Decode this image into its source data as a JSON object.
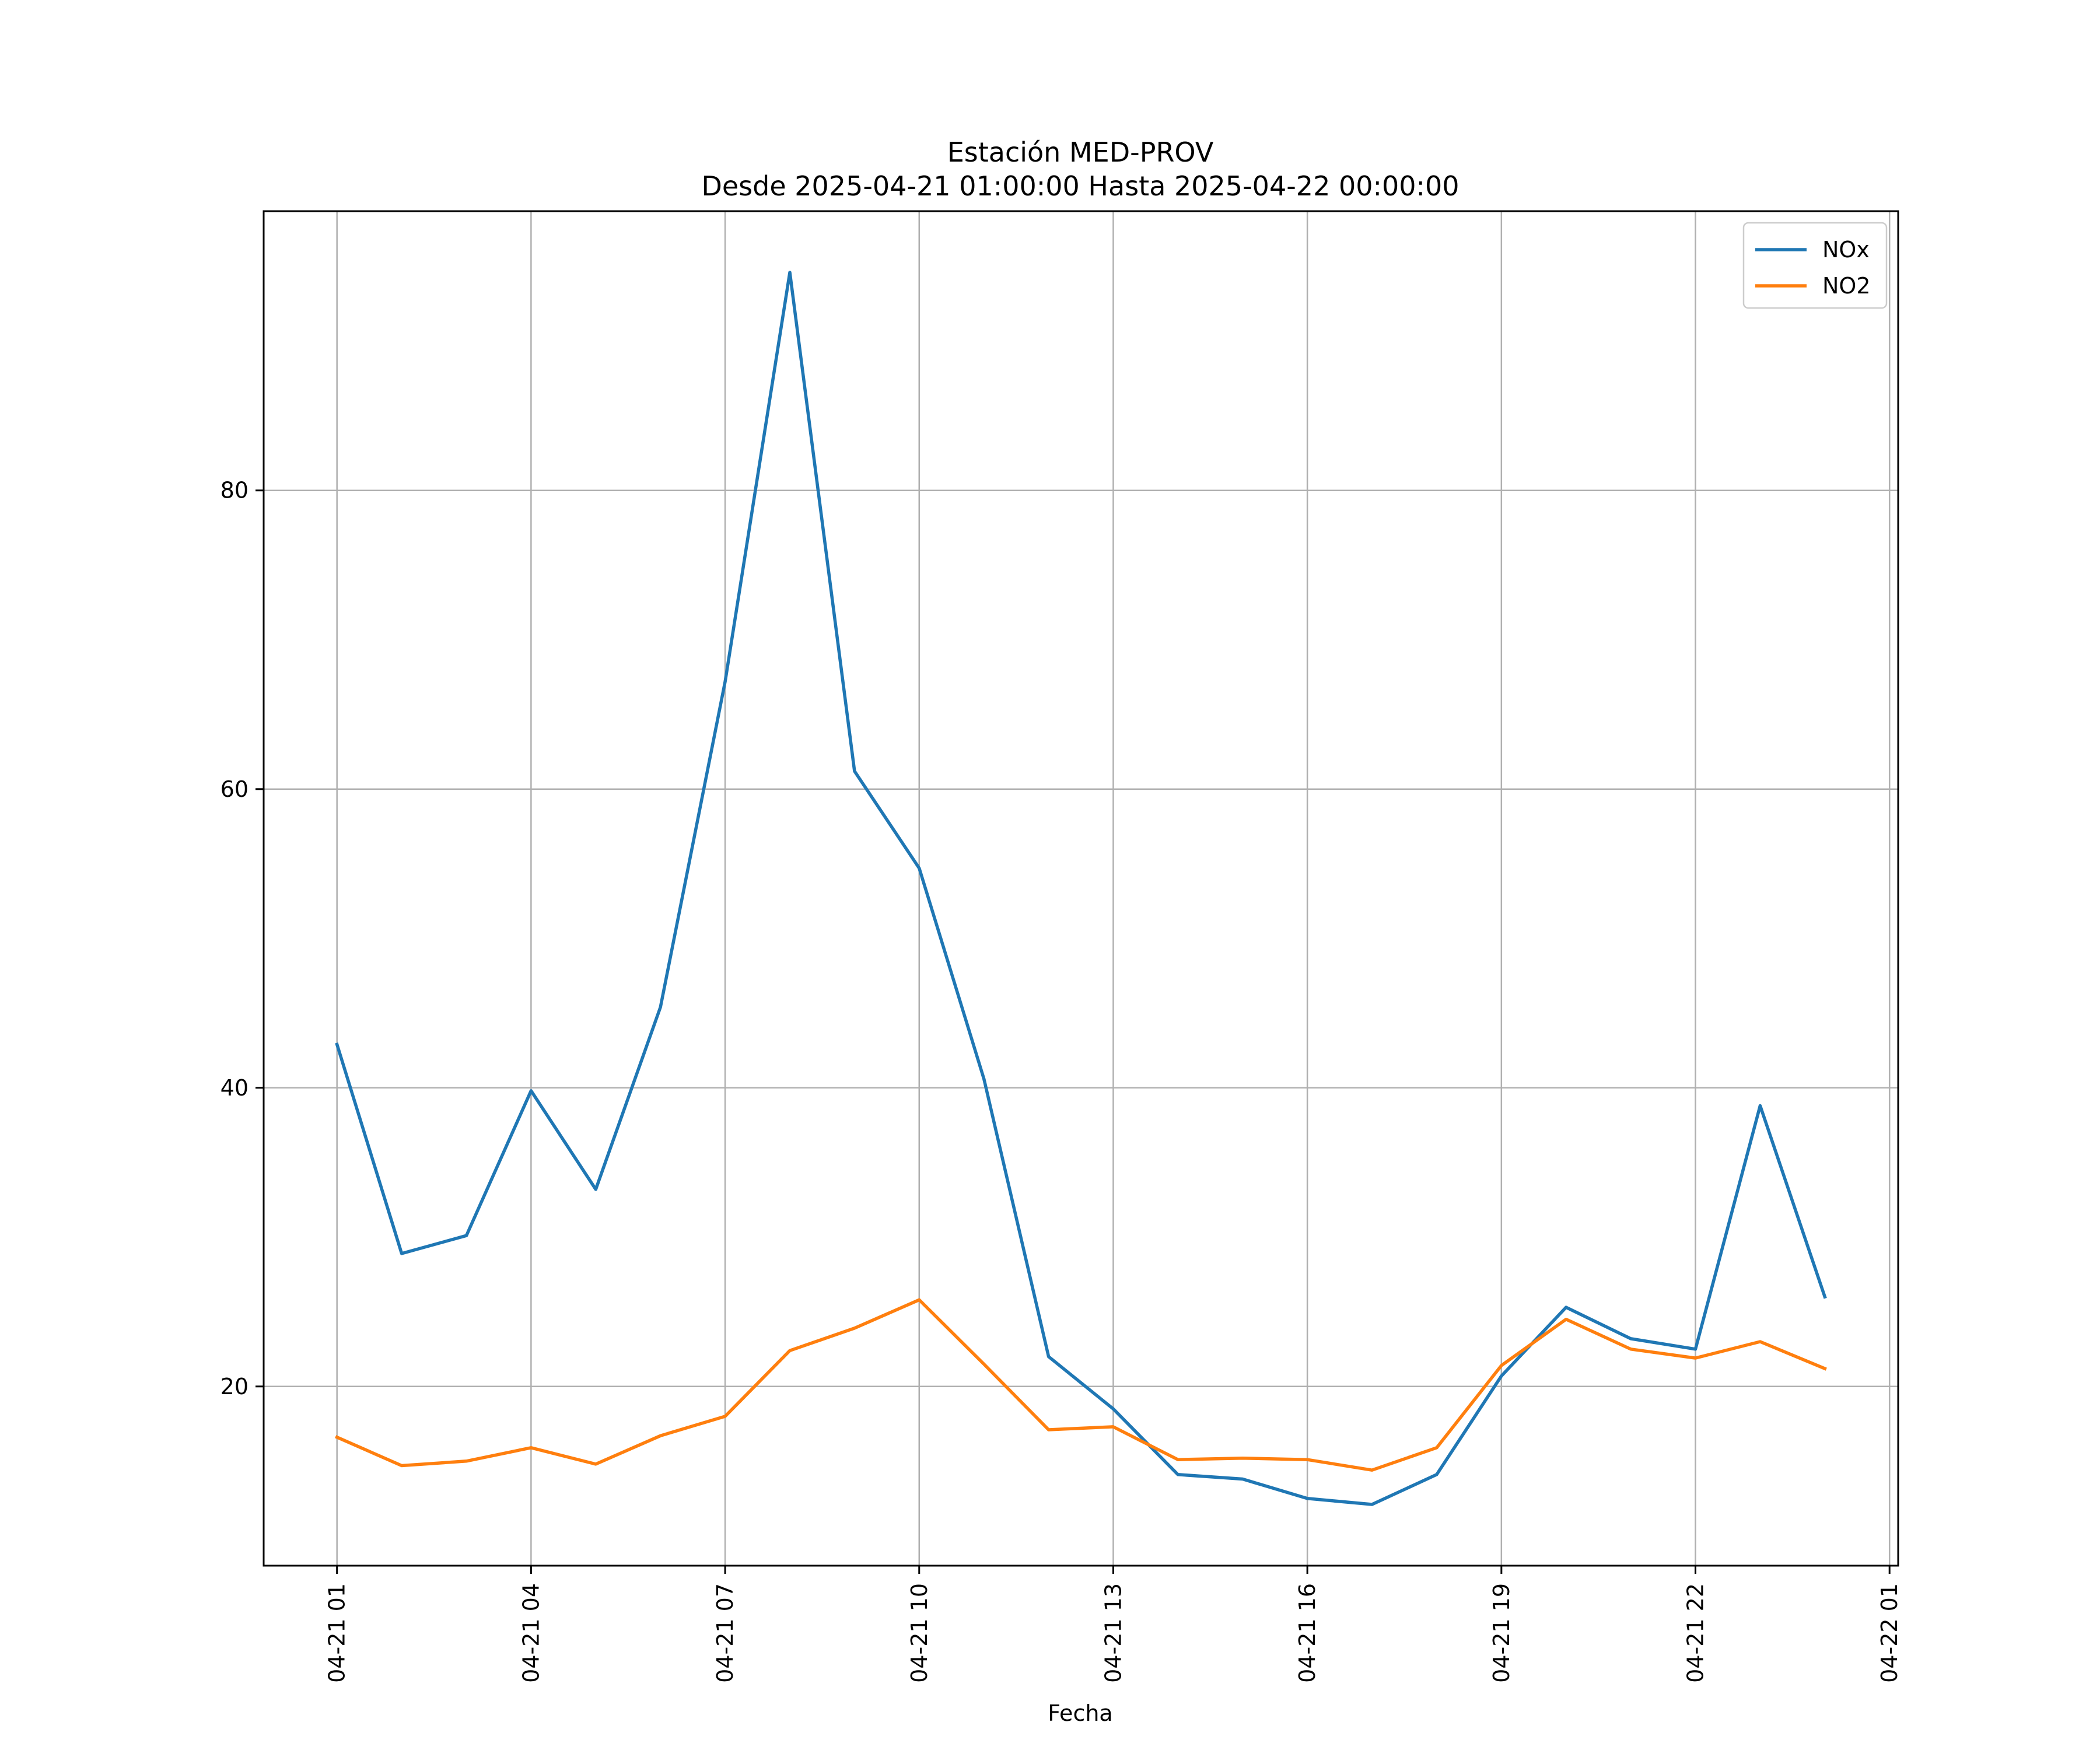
{
  "chart_data": {
    "type": "line",
    "title": "Estación MED-PROV",
    "subtitle": "Desde 2025-04-21 01:00:00 Hasta 2025-04-22 00:00:00",
    "xlabel": "Fecha",
    "ylabel": "",
    "x": [
      "2025-04-21 01:00",
      "2025-04-21 02:00",
      "2025-04-21 03:00",
      "2025-04-21 04:00",
      "2025-04-21 05:00",
      "2025-04-21 06:00",
      "2025-04-21 07:00",
      "2025-04-21 08:00",
      "2025-04-21 09:00",
      "2025-04-21 10:00",
      "2025-04-21 11:00",
      "2025-04-21 12:00",
      "2025-04-21 13:00",
      "2025-04-21 14:00",
      "2025-04-21 15:00",
      "2025-04-21 16:00",
      "2025-04-21 17:00",
      "2025-04-21 18:00",
      "2025-04-21 19:00",
      "2025-04-21 20:00",
      "2025-04-21 21:00",
      "2025-04-21 22:00",
      "2025-04-21 23:00",
      "2025-04-22 00:00"
    ],
    "xlim": [
      "2025-04-20 23:52",
      "2025-04-22 01:08"
    ],
    "ylim": [
      8,
      98.7
    ],
    "x_ticks": [
      "04-21 01",
      "04-21 04",
      "04-21 07",
      "04-21 10",
      "04-21 13",
      "04-21 16",
      "04-21 19",
      "04-21 22",
      "04-22 01"
    ],
    "x_tick_times": [
      "2025-04-21 01:00",
      "2025-04-21 04:00",
      "2025-04-21 07:00",
      "2025-04-21 10:00",
      "2025-04-21 13:00",
      "2025-04-21 16:00",
      "2025-04-21 19:00",
      "2025-04-21 22:00",
      "2025-04-22 01:00"
    ],
    "y_ticks": [
      20,
      40,
      60,
      80
    ],
    "grid": true,
    "legend_position": "top-right",
    "series": [
      {
        "name": "NOx",
        "color": "#1f77b4",
        "values": [
          42.9,
          28.9,
          30.1,
          39.8,
          33.2,
          45.4,
          67.2,
          94.6,
          61.2,
          54.7,
          40.6,
          22.0,
          18.5,
          14.1,
          13.8,
          12.5,
          12.1,
          14.1,
          20.7,
          25.3,
          23.2,
          22.5,
          38.8,
          26.0
        ]
      },
      {
        "name": "NO2",
        "color": "#ff7f0e",
        "values": [
          16.6,
          14.7,
          15.0,
          15.9,
          14.8,
          16.7,
          18.0,
          22.4,
          23.9,
          25.8,
          21.5,
          17.1,
          17.3,
          15.1,
          15.2,
          15.1,
          14.4,
          15.9,
          21.4,
          24.5,
          22.5,
          21.9,
          23.0,
          21.2
        ]
      }
    ]
  }
}
